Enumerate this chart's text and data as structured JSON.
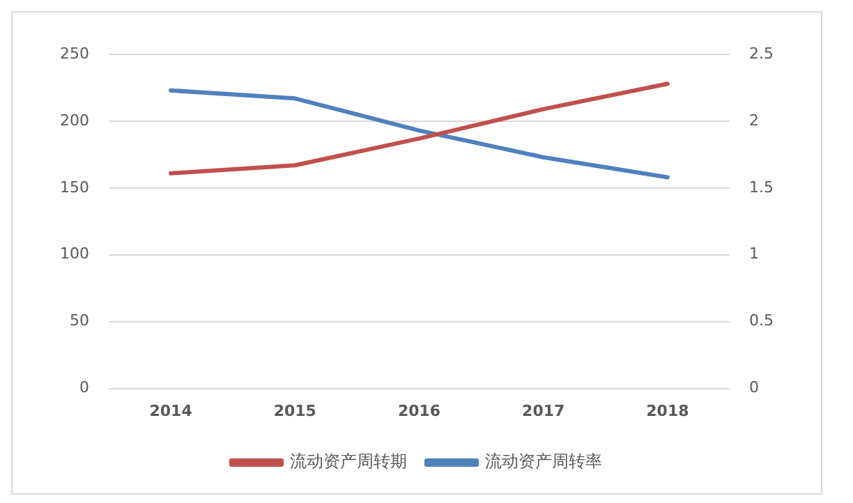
{
  "chart_data": {
    "type": "line",
    "categories": [
      "2014",
      "2015",
      "2016",
      "2017",
      "2018"
    ],
    "series": [
      {
        "name": "流动资产周转期",
        "color": "#c0504d",
        "values": [
          161,
          167,
          187,
          209,
          228
        ]
      },
      {
        "name": "流动资产周转率",
        "color": "#4f81bd",
        "values": [
          2.23,
          2.17,
          1.93,
          1.73,
          1.58
        ],
        "axis": "y2"
      }
    ],
    "ylim": [
      0,
      250
    ],
    "yticks": [
      0,
      50,
      100,
      150,
      200,
      250
    ],
    "y2lim": [
      0,
      2.5
    ],
    "y2ticks": [
      0,
      0.5,
      1,
      1.5,
      2,
      2.5
    ],
    "grid": "y",
    "legend": "bottom",
    "marker": "none",
    "line_style": "solid"
  }
}
